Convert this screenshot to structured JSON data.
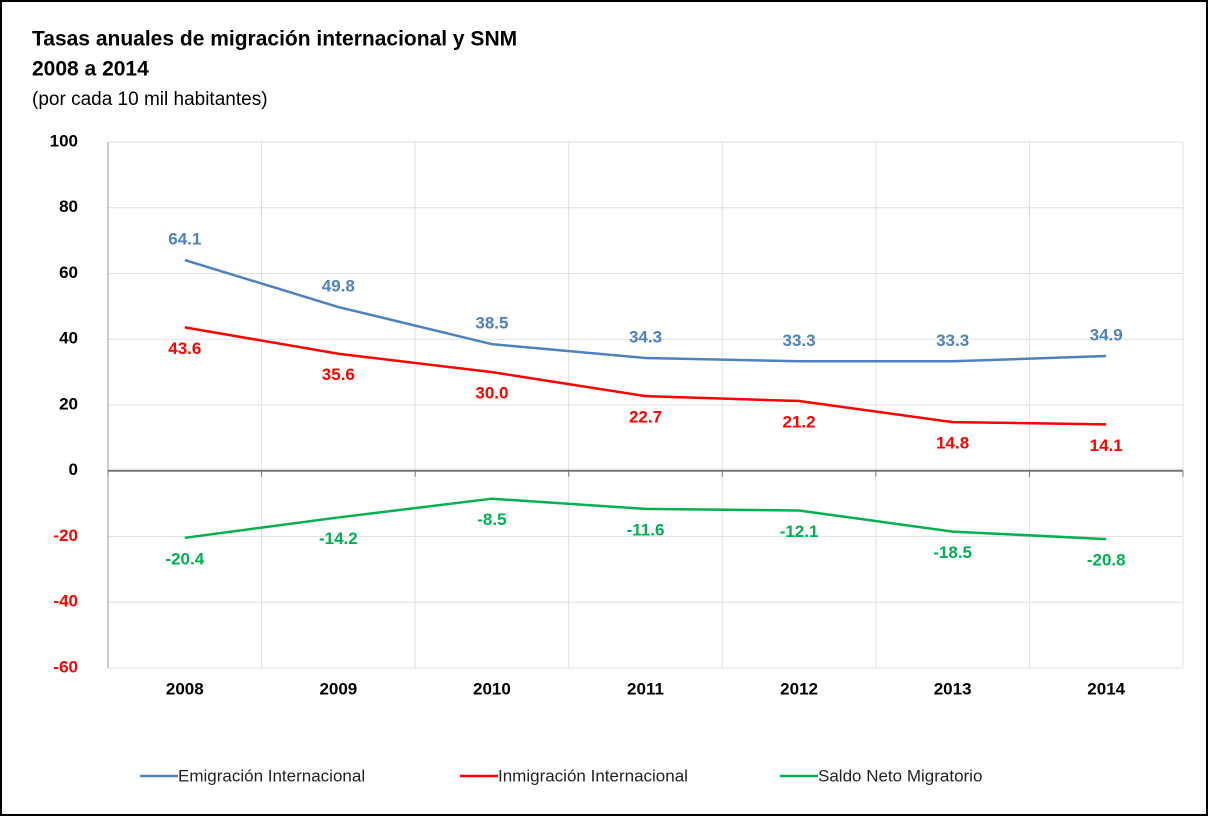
{
  "chart_data": {
    "type": "line",
    "title": "Tasas anuales de migración internacional y SNM",
    "subtitle": "2008 a 2014",
    "note": "(por cada 10 mil habitantes)",
    "categories": [
      "2008",
      "2009",
      "2010",
      "2011",
      "2012",
      "2013",
      "2014"
    ],
    "series": [
      {
        "name": "Emigración Internacional",
        "color": "#4f81bd",
        "values": [
          64.1,
          49.8,
          38.5,
          34.3,
          33.3,
          33.3,
          34.9
        ],
        "value_labels": [
          "64.1",
          "49.8",
          "38.5",
          "34.3",
          "33.3",
          "33.3",
          "34.9"
        ]
      },
      {
        "name": "Inmigración Internacional",
        "color": "#ff0000",
        "values": [
          43.6,
          35.6,
          30.0,
          22.7,
          21.2,
          14.8,
          14.1
        ],
        "value_labels": [
          "43.6",
          "35.6",
          "30.0",
          "22.7",
          "21.2",
          "14.8",
          "14.1"
        ]
      },
      {
        "name": "Saldo Neto Migratorio",
        "color": "#00b050",
        "values": [
          -20.4,
          -14.2,
          -8.5,
          -11.6,
          -12.1,
          -18.5,
          -20.8
        ],
        "value_labels": [
          "-20.4",
          "-14.2",
          "-8.5",
          "-11.6",
          "-12.1",
          "-18.5",
          "-20.8"
        ]
      }
    ],
    "ylim": [
      -60,
      100
    ],
    "yticks": [
      -60,
      -40,
      -20,
      0,
      20,
      40,
      60,
      80,
      100
    ],
    "grid": true,
    "legend": "bottom"
  }
}
